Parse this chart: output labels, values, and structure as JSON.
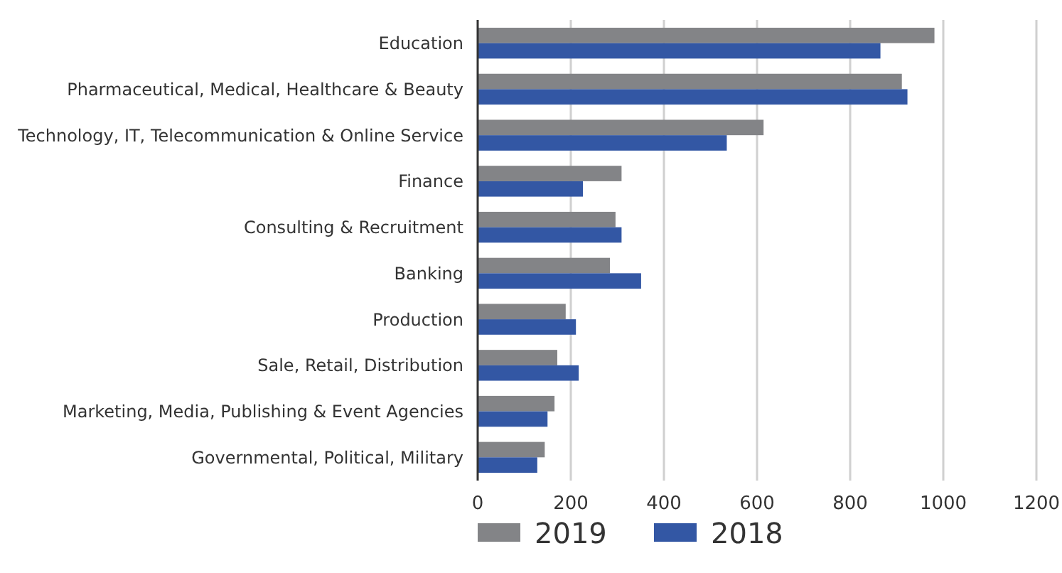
{
  "chart_data": {
    "type": "bar",
    "orientation": "horizontal",
    "categories": [
      "Education",
      "Pharmaceutical, Medical, Healthcare & Beauty",
      "Technology, IT, Telecommunication & Online Service",
      "Finance",
      "Consulting & Recruitment",
      "Banking",
      "Production",
      "Sale, Retail, Distribution",
      "Marketing, Media, Publishing & Event Agencies",
      "Governmental, Political, Military"
    ],
    "series": [
      {
        "name": "2019",
        "color": "#838487",
        "values": [
          981,
          911,
          614,
          309,
          296,
          284,
          189,
          171,
          165,
          144
        ]
      },
      {
        "name": "2018",
        "color": "#3357a4",
        "values": [
          865,
          923,
          535,
          226,
          309,
          351,
          211,
          217,
          150,
          128
        ]
      }
    ],
    "xlim": [
      0,
      1200
    ],
    "xticks": [
      0,
      200,
      400,
      600,
      800,
      1000,
      1200
    ],
    "grid": "x",
    "legend": "bottom"
  }
}
